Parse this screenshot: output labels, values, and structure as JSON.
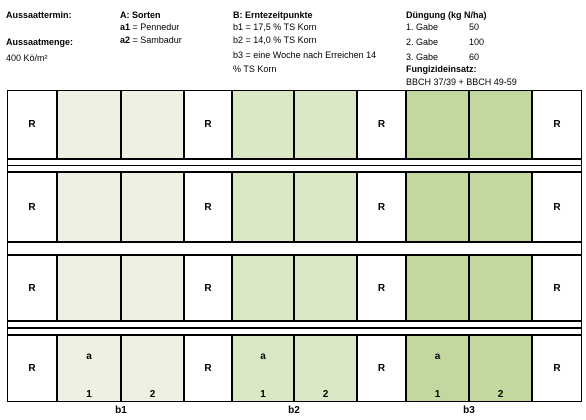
{
  "header": {
    "aussaattermin_label": "Aussaattermin:",
    "aussaatmenge_label": "Aussaatmenge:",
    "aussaatmenge_value": "400 Kö/m²",
    "sorten": {
      "title": "A: Sorten",
      "items": [
        {
          "code": "a1",
          "text": " = Pennedur"
        },
        {
          "code": "a2",
          "text": " = Sambadur"
        }
      ]
    },
    "erntezeitpunkte": {
      "title": "B: Erntezeitpunkte",
      "lines": [
        "b1 = 17,5 % TS Korn",
        "b2 = 14,0 % TS Korn",
        "b3 = eine Woche nach Erreichen 14",
        "% TS Korn"
      ]
    },
    "duengung": {
      "title": "Düngung (kg N/ha)",
      "rows": [
        {
          "label": "1. Gabe",
          "value": "50"
        },
        {
          "label": "2. Gabe",
          "value": "100"
        },
        {
          "label": "3. Gabe",
          "value": "60"
        }
      ]
    },
    "fungizid": {
      "title": "Fungizideinsatz:",
      "value": "BBCH 37/39 + BBCH 49-59"
    }
  },
  "plot": {
    "r_label": "R",
    "sorte_label": "a",
    "column_labels": [
      "1",
      "2"
    ],
    "block_labels": [
      "b1",
      "b2",
      "b3"
    ],
    "colors": {
      "b1": "#ecf1e1",
      "b2": "#d9e7c4",
      "b3": "#c3d89f",
      "border": "#000000",
      "background": "#ffffff"
    }
  }
}
